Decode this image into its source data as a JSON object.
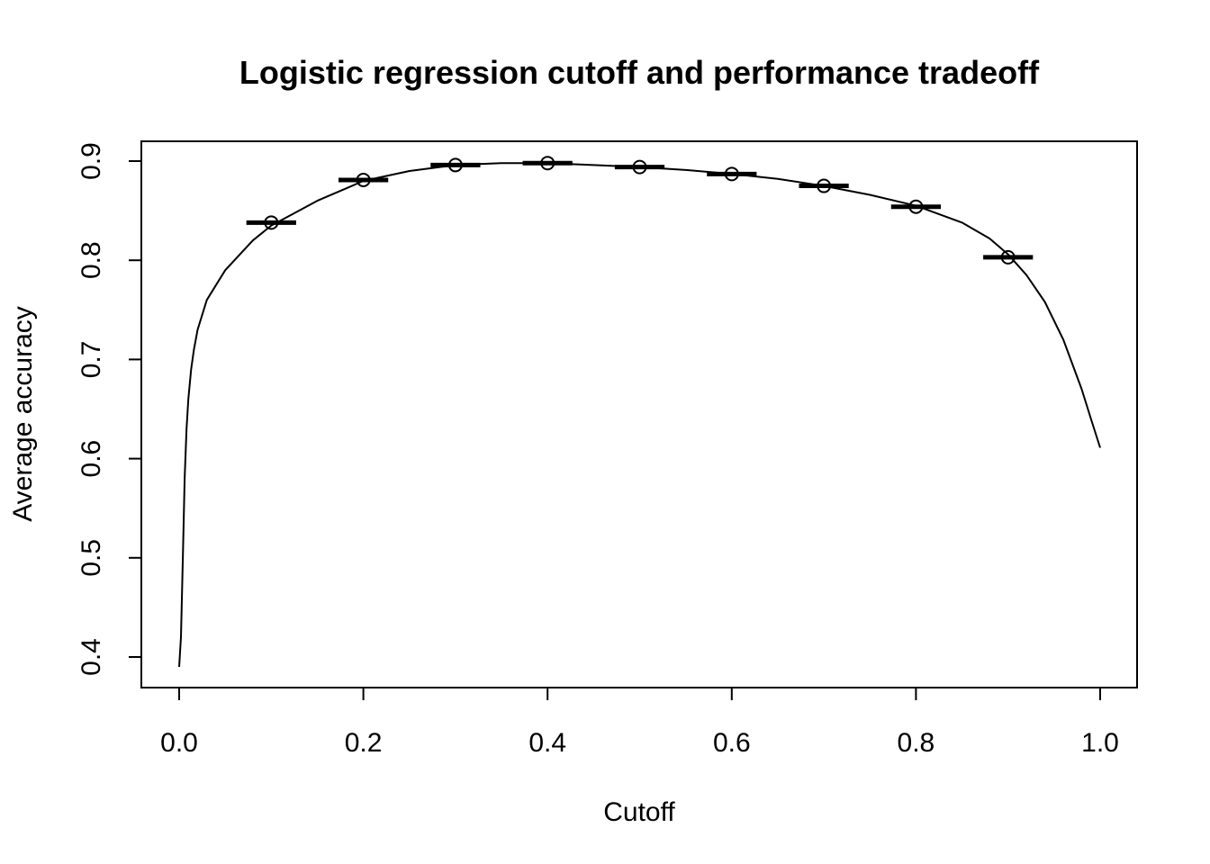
{
  "chart_data": {
    "type": "line",
    "title": "Logistic regression cutoff and performance tradeoff",
    "xlabel": "Cutoff",
    "ylabel": "Average accuracy",
    "xlim": [
      0.0,
      1.0
    ],
    "ylim": [
      0.38,
      0.92
    ],
    "x_ticks": [
      "0.0",
      "0.2",
      "0.4",
      "0.6",
      "0.8",
      "1.0"
    ],
    "y_ticks": [
      "0.4",
      "0.5",
      "0.6",
      "0.7",
      "0.8",
      "0.9"
    ],
    "grid": false,
    "legend": "none",
    "series": [
      {
        "kind": "line",
        "x": [
          0.0,
          0.002,
          0.004,
          0.006,
          0.008,
          0.01,
          0.013,
          0.016,
          0.02,
          0.025,
          0.03,
          0.04,
          0.05,
          0.06,
          0.07,
          0.08,
          0.1,
          0.12,
          0.15,
          0.18,
          0.2,
          0.25,
          0.3,
          0.35,
          0.4,
          0.45,
          0.5,
          0.55,
          0.6,
          0.65,
          0.7,
          0.75,
          0.8,
          0.85,
          0.88,
          0.9,
          0.92,
          0.94,
          0.96,
          0.98,
          0.99,
          1.0
        ],
        "values": [
          0.39,
          0.42,
          0.5,
          0.58,
          0.63,
          0.66,
          0.69,
          0.71,
          0.73,
          0.745,
          0.76,
          0.775,
          0.79,
          0.8,
          0.81,
          0.82,
          0.835,
          0.845,
          0.86,
          0.872,
          0.88,
          0.89,
          0.896,
          0.898,
          0.898,
          0.896,
          0.894,
          0.891,
          0.887,
          0.882,
          0.875,
          0.866,
          0.855,
          0.838,
          0.822,
          0.806,
          0.785,
          0.758,
          0.72,
          0.67,
          0.64,
          0.611
        ]
      },
      {
        "kind": "points",
        "marker": "open-circle",
        "x": [
          0.1,
          0.2,
          0.3,
          0.4,
          0.5,
          0.6,
          0.7,
          0.8,
          0.9
        ],
        "values": [
          0.838,
          0.881,
          0.896,
          0.898,
          0.894,
          0.887,
          0.875,
          0.854,
          0.803
        ]
      },
      {
        "kind": "horizontal-bars",
        "halfwidth": 0.027,
        "x": [
          0.1,
          0.2,
          0.3,
          0.4,
          0.5,
          0.6,
          0.7,
          0.8,
          0.9
        ],
        "values": [
          0.838,
          0.881,
          0.896,
          0.898,
          0.894,
          0.887,
          0.875,
          0.854,
          0.803
        ]
      }
    ]
  }
}
